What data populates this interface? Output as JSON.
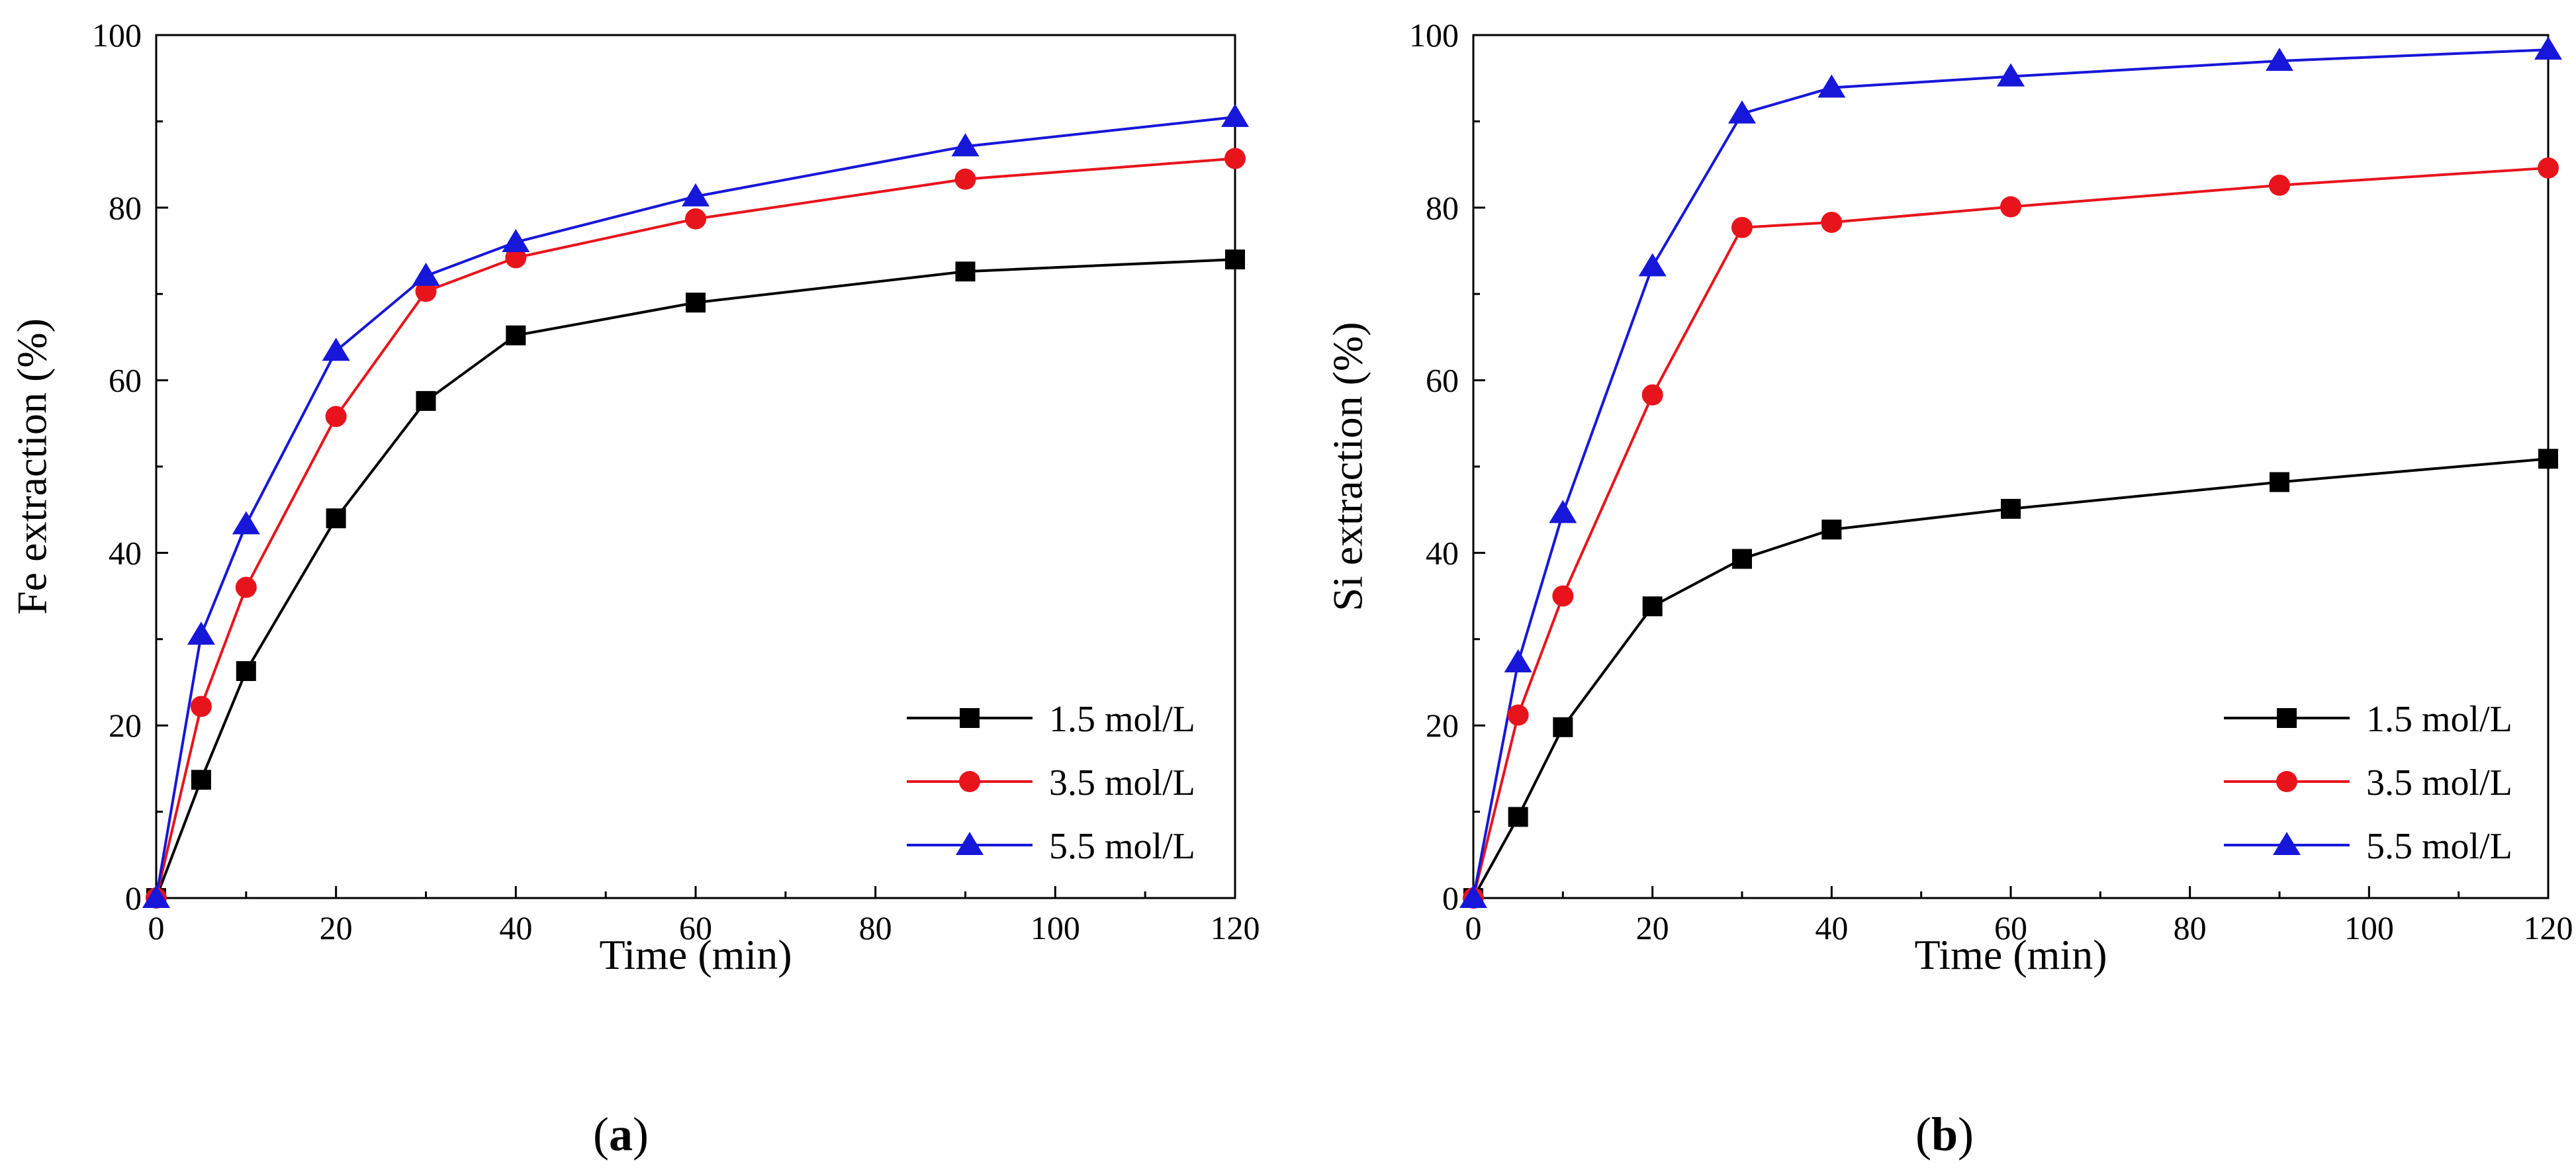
{
  "chart_data": [
    {
      "type": "line",
      "panel_label": "a",
      "xlabel": "Time (min)",
      "ylabel": "Fe extraction (%)",
      "xlim": [
        0,
        120
      ],
      "ylim": [
        0,
        100
      ],
      "xticks": [
        0,
        20,
        40,
        60,
        80,
        100,
        120
      ],
      "yticks": [
        0,
        20,
        40,
        60,
        80,
        100
      ],
      "x": [
        0,
        5,
        10,
        20,
        30,
        40,
        60,
        90,
        120
      ],
      "legend_position": "bottom-right",
      "series": [
        {
          "name": "1.5 mol/L",
          "color": "#000000",
          "marker": "square",
          "values": [
            0,
            13.7,
            26.3,
            44.0,
            57.6,
            65.2,
            69.0,
            72.6,
            74.0
          ]
        },
        {
          "name": "3.5 mol/L",
          "color": "#e8141c",
          "marker": "circle",
          "values": [
            0,
            22.2,
            36.0,
            55.8,
            70.3,
            74.2,
            78.7,
            83.3,
            85.7
          ]
        },
        {
          "name": "5.5 mol/L",
          "color": "#1717d9",
          "marker": "triangle",
          "values": [
            0,
            30.5,
            43.3,
            63.4,
            72.1,
            76.0,
            81.3,
            87.1,
            90.5
          ]
        }
      ]
    },
    {
      "type": "line",
      "panel_label": "b",
      "xlabel": "Time (min)",
      "ylabel": "Si extraction (%)",
      "xlim": [
        0,
        120
      ],
      "ylim": [
        0,
        100
      ],
      "xticks": [
        0,
        20,
        40,
        60,
        80,
        100,
        120
      ],
      "yticks": [
        0,
        20,
        40,
        60,
        80,
        100
      ],
      "x": [
        0,
        5,
        10,
        20,
        30,
        40,
        60,
        90,
        120
      ],
      "legend_position": "bottom-right",
      "series": [
        {
          "name": "1.5 mol/L",
          "color": "#000000",
          "marker": "square",
          "values": [
            0,
            9.4,
            19.8,
            33.8,
            39.3,
            42.7,
            45.1,
            48.2,
            50.9
          ]
        },
        {
          "name": "3.5 mol/L",
          "color": "#e8141c",
          "marker": "circle",
          "values": [
            0,
            21.2,
            35.0,
            58.3,
            77.7,
            78.3,
            80.1,
            82.6,
            84.6
          ]
        },
        {
          "name": "5.5 mol/L",
          "color": "#1717d9",
          "marker": "triangle",
          "values": [
            0,
            27.3,
            44.6,
            73.2,
            90.9,
            93.9,
            95.2,
            97.0,
            98.3
          ]
        }
      ]
    }
  ]
}
